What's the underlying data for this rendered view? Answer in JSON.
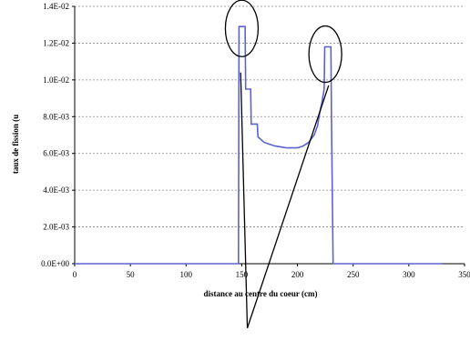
{
  "chart_data": {
    "type": "line",
    "xlabel": "distance au centre du coeur (cm)",
    "ylabel": "taux de fission (u",
    "xlim": [
      0,
      350
    ],
    "ylim": [
      0,
      0.014
    ],
    "x_ticks": [
      "0",
      "50",
      "100",
      "150",
      "200",
      "250",
      "300",
      "350"
    ],
    "y_ticks": [
      "0.0E+00",
      "2.0E-03",
      "4.0E-03",
      "6.0E-03",
      "8.0E-03",
      "1.0E-02",
      "1.2E-02",
      "1.4E-02"
    ],
    "grid": true,
    "series": [
      {
        "color": "#5b63d0",
        "x": [
          0,
          145,
          147,
          147.5,
          153,
          153.5,
          158,
          158.5,
          164,
          164.5,
          170,
          175,
          180,
          190,
          200,
          205,
          210,
          215,
          218,
          220,
          222,
          224,
          224.5,
          230,
          230.5,
          232,
          234,
          330
        ],
        "y": [
          0,
          0,
          0,
          0.0129,
          0.0129,
          0.0095,
          0.0095,
          0.0076,
          0.0076,
          0.0069,
          0.0066,
          0.0065,
          0.0064,
          0.0063,
          0.0063,
          0.0064,
          0.0066,
          0.007,
          0.0075,
          0.0082,
          0.0088,
          0.0095,
          0.0118,
          0.0118,
          0.008,
          0,
          0,
          0
        ]
      }
    ]
  },
  "annotations": {
    "ellipses": [
      {
        "cx": 150,
        "cy": 0.0128
      },
      {
        "cx": 225,
        "cy": 0.0114
      }
    ],
    "pointer": {
      "from": [
        155,
        -0.0035
      ],
      "to_left": [
        149,
        0.0104
      ],
      "to_right": [
        228,
        0.0097
      ]
    }
  }
}
